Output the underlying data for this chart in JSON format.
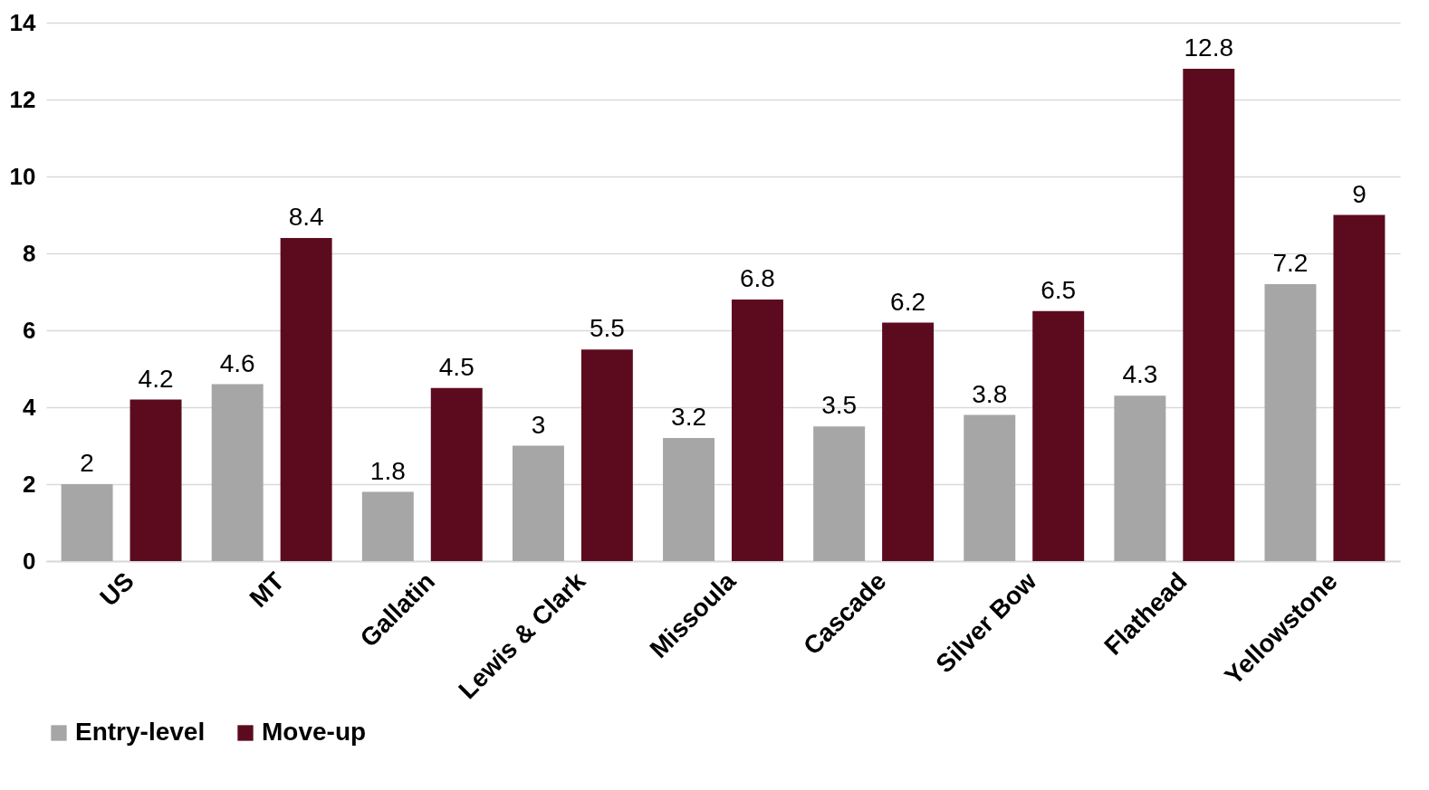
{
  "chart_data": {
    "type": "bar",
    "categories": [
      "US",
      "MT",
      "Gallatin",
      "Lewis & Clark",
      "Missoula",
      "Cascade",
      "Silver Bow",
      "Flathead",
      "Yellowstone"
    ],
    "series": [
      {
        "name": "Entry-level",
        "color": "#a6a6a6",
        "values": [
          2,
          4.6,
          1.8,
          3,
          3.2,
          3.5,
          3.8,
          4.3,
          7.2
        ]
      },
      {
        "name": "Move-up",
        "color": "#5c0b1e",
        "values": [
          4.2,
          8.4,
          4.5,
          5.5,
          6.8,
          6.2,
          6.5,
          12.8,
          9
        ]
      }
    ],
    "ylim": [
      0,
      14
    ],
    "yticks": [
      0,
      2,
      4,
      6,
      8,
      10,
      12,
      14
    ],
    "grid": "y",
    "legend": "bottom",
    "data_labels": true
  }
}
